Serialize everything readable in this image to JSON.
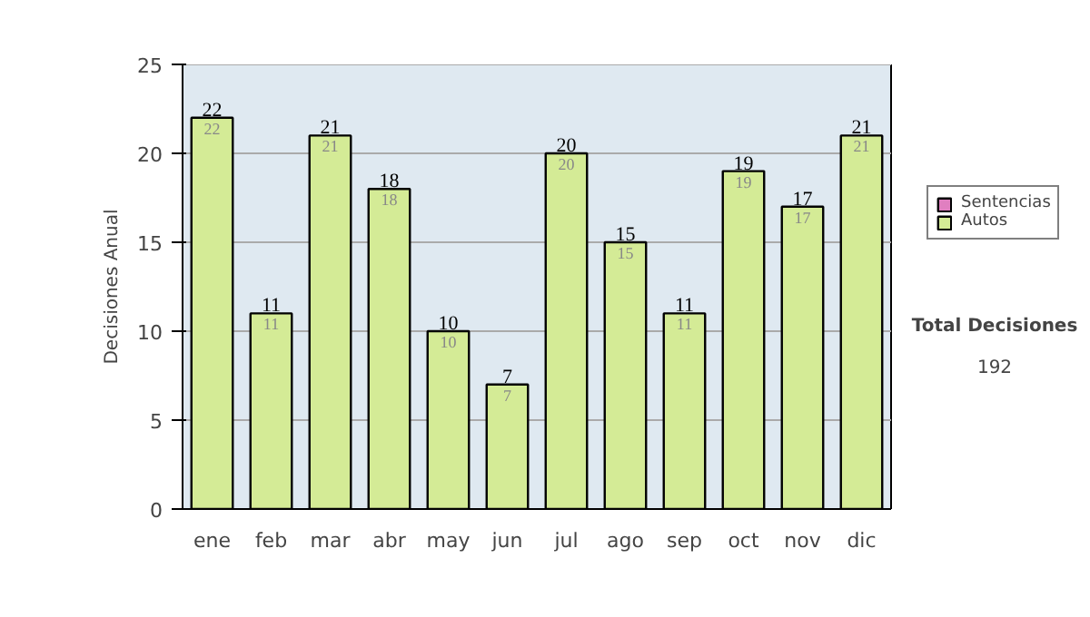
{
  "chart_data": {
    "type": "bar",
    "stacked": true,
    "ylabel": "Decisiones Anual",
    "categories": [
      "ene",
      "feb",
      "mar",
      "abr",
      "may",
      "jun",
      "jul",
      "ago",
      "sep",
      "oct",
      "nov",
      "dic"
    ],
    "series": [
      {
        "name": "Sentencias",
        "color": "#e07fc0",
        "values": [
          0,
          0,
          0,
          0,
          0,
          0,
          0,
          0,
          0,
          0,
          0,
          0
        ]
      },
      {
        "name": "Autos",
        "color": "#d4eb96",
        "values": [
          22,
          11,
          21,
          18,
          10,
          7,
          20,
          15,
          11,
          19,
          17,
          21
        ],
        "value_labels": [
          "22",
          "11",
          "21",
          "18",
          "10",
          "7",
          "20",
          "15",
          "11",
          "19",
          "17",
          "21"
        ]
      }
    ],
    "totals": [
      "22",
      "11",
      "21",
      "18",
      "10",
      "7",
      "20",
      "15",
      "11",
      "19",
      "17",
      "21"
    ],
    "ylim": [
      0,
      25
    ],
    "yticks": [
      0,
      5,
      10,
      15,
      20,
      25
    ],
    "grid": "y",
    "legend": "right",
    "annotations": [
      "Total Decisiones",
      "192"
    ]
  }
}
